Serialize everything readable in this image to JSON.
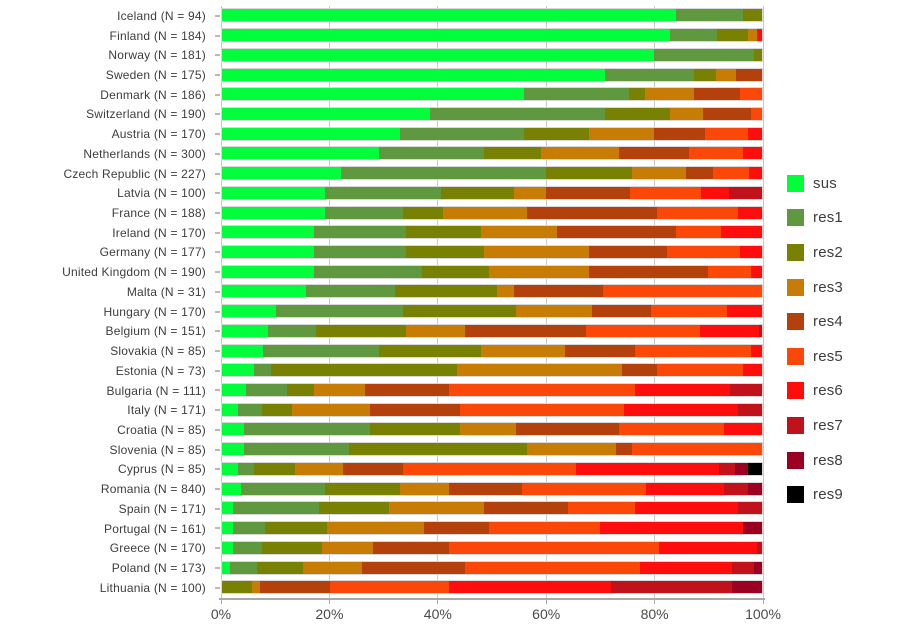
{
  "chart_data": {
    "type": "bar",
    "orientation": "horizontal",
    "stacked": true,
    "unit": "percent",
    "xlim": [
      0,
      100
    ],
    "x_ticks": [
      "0%",
      "20%",
      "40%",
      "60%",
      "80%",
      "100%"
    ],
    "x_tick_values": [
      0,
      20,
      40,
      60,
      80,
      100
    ],
    "grid": true,
    "legend_position": "right",
    "series_names": [
      "sus",
      "res1",
      "res2",
      "res3",
      "res4",
      "res5",
      "res6",
      "res7",
      "res8",
      "res9"
    ],
    "series_colors": [
      "#00fe3a",
      "#60983f",
      "#788103",
      "#c77d05",
      "#b4410c",
      "#fb4708",
      "#fe0d0d",
      "#c1121c",
      "#9b0022",
      "#000000"
    ],
    "rows": [
      {
        "label": "Iceland (N = 94)",
        "values": [
          84,
          12.5,
          3.5,
          0,
          0,
          0,
          0,
          0,
          0,
          0
        ]
      },
      {
        "label": "Finland (N = 184)",
        "values": [
          83,
          8.7,
          5.8,
          1.5,
          0,
          0,
          1,
          0,
          0,
          0
        ]
      },
      {
        "label": "Norway (N = 181)",
        "values": [
          80,
          18.5,
          1.5,
          0,
          0,
          0,
          0,
          0,
          0,
          0
        ]
      },
      {
        "label": "Sweden (N = 175)",
        "values": [
          71,
          16.5,
          4,
          3.7,
          4.8,
          0,
          0,
          0,
          0,
          0
        ]
      },
      {
        "label": "Denmark (N = 186)",
        "values": [
          56,
          19.3,
          3,
          9.2,
          8.5,
          4,
          0,
          0,
          0,
          0
        ]
      },
      {
        "label": "Switzerland (N = 190)",
        "values": [
          38.5,
          32.5,
          12,
          6,
          9,
          2,
          0,
          0,
          0,
          0
        ]
      },
      {
        "label": "Austria (N = 170)",
        "values": [
          33,
          23,
          12,
          12,
          9.5,
          8,
          2.5,
          0,
          0,
          0
        ]
      },
      {
        "label": "Netherlands (N = 300)",
        "values": [
          29,
          19.5,
          10.5,
          14.5,
          13,
          10,
          3.5,
          0,
          0,
          0
        ]
      },
      {
        "label": "Czech Republic (N = 227)",
        "values": [
          22,
          38,
          16,
          10,
          5,
          6.6,
          2.4,
          0,
          0,
          0
        ]
      },
      {
        "label": "Latvia (N = 100)",
        "values": [
          19,
          21.5,
          13.5,
          6,
          15.5,
          13.2,
          5.2,
          6.1,
          0,
          0
        ]
      },
      {
        "label": "France (N = 188)",
        "values": [
          19,
          14.5,
          7.5,
          15.5,
          24,
          15,
          4.5,
          0,
          0,
          0
        ]
      },
      {
        "label": "Ireland (N = 170)",
        "values": [
          17,
          17,
          14,
          14,
          22,
          8.5,
          7.5,
          0,
          0,
          0
        ]
      },
      {
        "label": "Germany (N = 177)",
        "values": [
          17,
          17,
          14.5,
          19.5,
          14.5,
          13.5,
          4,
          0,
          0,
          0
        ]
      },
      {
        "label": "United Kingdom (N = 190)",
        "values": [
          17,
          20,
          12.5,
          18.5,
          22,
          8,
          2,
          0,
          0,
          0
        ]
      },
      {
        "label": "Malta (N = 31)",
        "values": [
          15.5,
          16.5,
          19,
          3,
          16.5,
          29.5,
          0,
          0,
          0,
          0
        ]
      },
      {
        "label": "Hungary (N = 170)",
        "values": [
          10,
          23.5,
          21,
          14,
          11,
          14,
          6.5,
          0,
          0,
          0
        ]
      },
      {
        "label": "Belgium (N = 151)",
        "values": [
          8.5,
          9,
          16.5,
          11,
          22.5,
          21,
          11,
          0.5,
          0,
          0
        ]
      },
      {
        "label": "Slovakia (N = 85)",
        "values": [
          7.5,
          21.5,
          19,
          15.5,
          13,
          21.5,
          2,
          0,
          0,
          0
        ]
      },
      {
        "label": "Estonia (N = 73)",
        "values": [
          6,
          3,
          34.5,
          30.5,
          6.5,
          16,
          3.5,
          0,
          0,
          0
        ]
      },
      {
        "label": "Bulgaria (N = 111)",
        "values": [
          4.5,
          7.5,
          5,
          9.5,
          15.5,
          34.5,
          17.5,
          6,
          0,
          0
        ]
      },
      {
        "label": "Italy (N = 171)",
        "values": [
          3,
          4.5,
          5.5,
          14.5,
          16.5,
          30.5,
          21,
          4.5,
          0,
          0
        ]
      },
      {
        "label": "Croatia (N = 85)",
        "values": [
          4,
          23.5,
          16.5,
          10.5,
          19,
          19.5,
          7,
          0,
          0,
          0
        ]
      },
      {
        "label": "Slovenia (N = 85)",
        "values": [
          4,
          19.5,
          33,
          16.5,
          3,
          24,
          0,
          0,
          0,
          0
        ]
      },
      {
        "label": "Cyprus (N = 85)",
        "values": [
          3,
          3,
          7.5,
          9,
          11,
          32,
          26.5,
          3,
          2.5,
          2.5
        ]
      },
      {
        "label": "Romania (N = 840)",
        "values": [
          3.5,
          15.5,
          14,
          9,
          13.5,
          23,
          14.5,
          4.5,
          2.5,
          0
        ]
      },
      {
        "label": "Spain (N = 171)",
        "values": [
          2,
          16,
          13,
          17.5,
          15.5,
          12.5,
          19,
          4.5,
          0,
          0
        ]
      },
      {
        "label": "Portugal (N = 161)",
        "values": [
          2,
          6,
          11.5,
          18,
          12,
          20.5,
          26.5,
          0,
          3.5,
          0
        ]
      },
      {
        "label": "Greece (N = 170)",
        "values": [
          2,
          5.5,
          11,
          9.5,
          14,
          39,
          18,
          1,
          0,
          0
        ]
      },
      {
        "label": "Poland (N = 173)",
        "values": [
          1.5,
          5,
          8.5,
          11,
          19,
          32.5,
          17,
          4,
          1.5,
          0
        ]
      },
      {
        "label": "Lithuania (N = 100)",
        "values": [
          0,
          0,
          5.5,
          1.5,
          13,
          22,
          30,
          22.5,
          5.5,
          0
        ]
      }
    ]
  },
  "legend": {
    "items": [
      {
        "label": "sus",
        "color": "#00fe3a"
      },
      {
        "label": "res1",
        "color": "#60983f"
      },
      {
        "label": "res2",
        "color": "#788103"
      },
      {
        "label": "res3",
        "color": "#c77d05"
      },
      {
        "label": "res4",
        "color": "#b4410c"
      },
      {
        "label": "res5",
        "color": "#fb4708"
      },
      {
        "label": "res6",
        "color": "#fe0d0d"
      },
      {
        "label": "res7",
        "color": "#c1121c"
      },
      {
        "label": "res8",
        "color": "#9b0022"
      },
      {
        "label": "res9",
        "color": "#000000"
      }
    ]
  }
}
